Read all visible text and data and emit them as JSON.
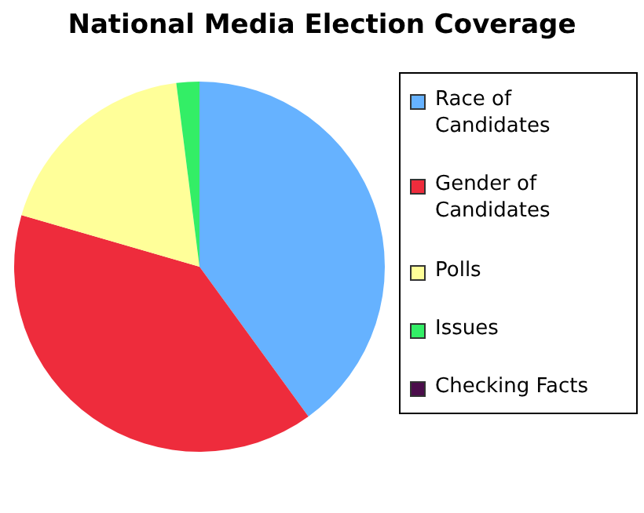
{
  "chart_data": {
    "type": "pie",
    "title": "National Media Election Coverage",
    "categories": [
      "Race of Candidates",
      "Gender of Candidates",
      "Polls",
      "Issues",
      "Checking Facts"
    ],
    "values": [
      40,
      39.5,
      18.5,
      2,
      0
    ],
    "colors": [
      "#66b2ff",
      "#ee2c3c",
      "#ffff99",
      "#33ee66",
      "#4b0d4b"
    ],
    "legend": "right"
  }
}
